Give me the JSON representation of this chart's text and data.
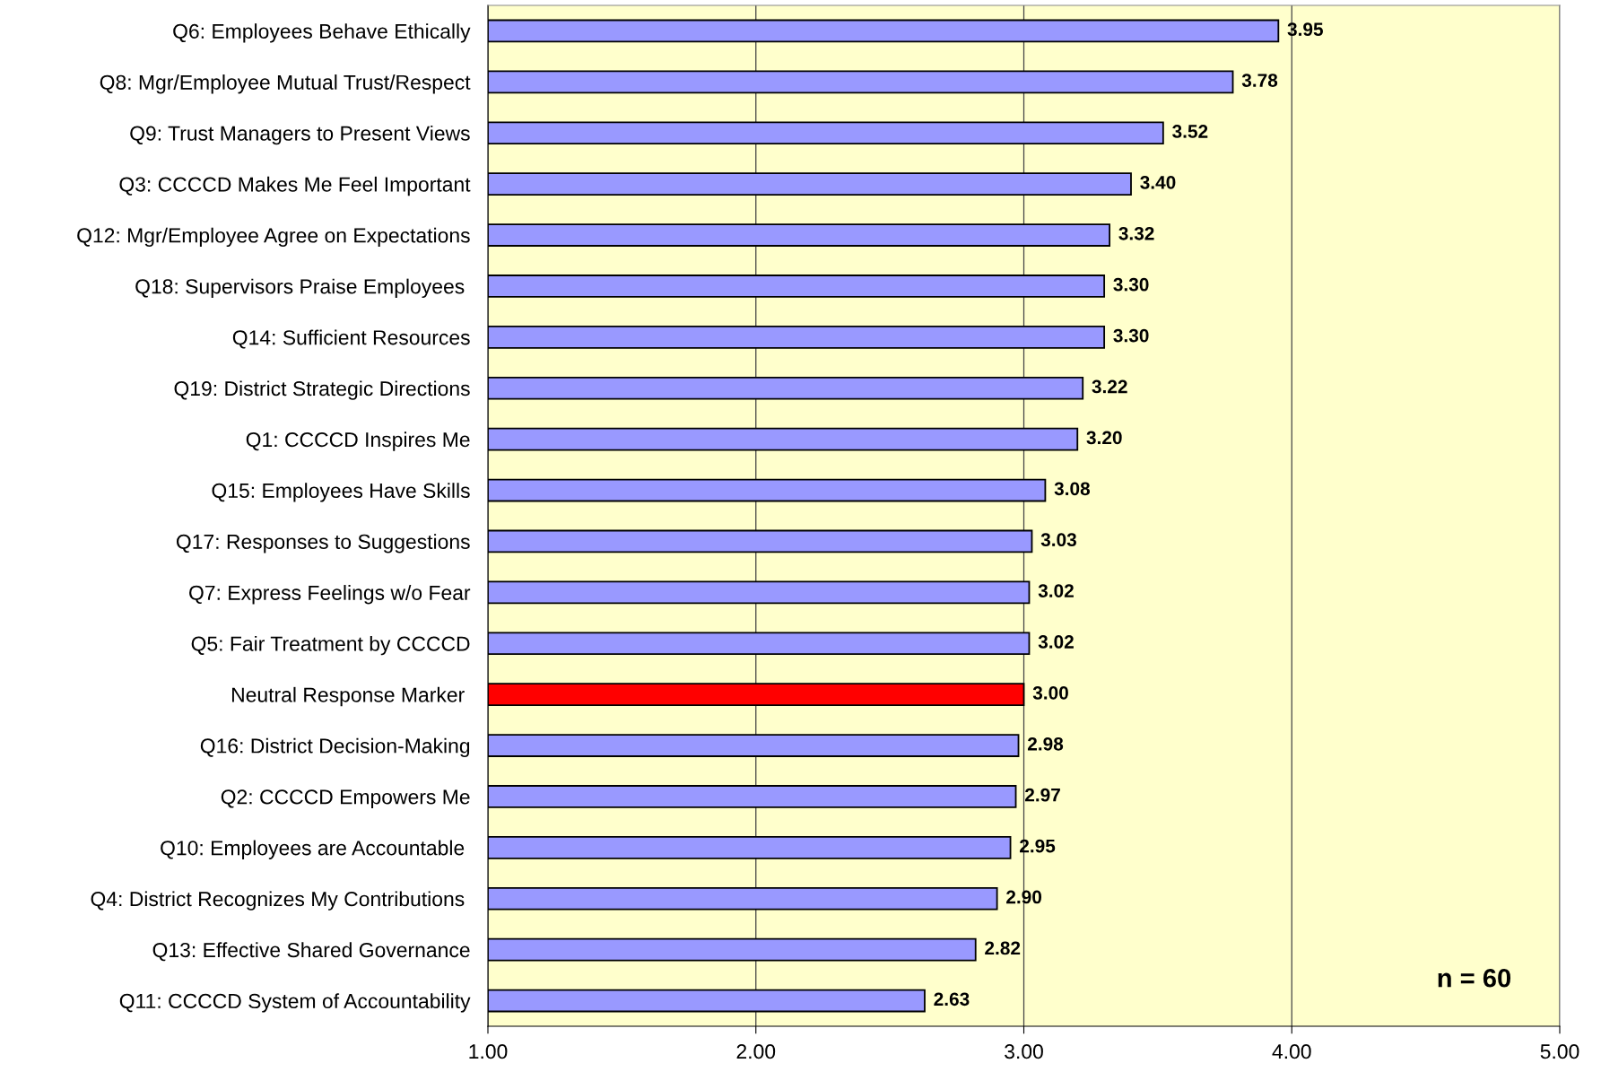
{
  "chart_data": {
    "type": "bar",
    "orientation": "horizontal",
    "categories": [
      "Q6: Employees Behave Ethically",
      "Q8: Mgr/Employee Mutual Trust/Respect",
      "Q9: Trust Managers to Present Views",
      "Q3: CCCCD Makes Me Feel Important",
      "Q12: Mgr/Employee Agree on Expectations",
      "Q18: Supervisors Praise Employees ",
      "Q14: Sufficient Resources",
      "Q19: District Strategic Directions",
      "Q1: CCCCD Inspires Me",
      "Q15: Employees Have Skills",
      "Q17: Responses to Suggestions",
      "Q7: Express Feelings w/o Fear",
      "Q5: Fair Treatment by CCCCD",
      "Neutral Response Marker ",
      "Q16: District Decision-Making",
      "Q2: CCCCD Empowers Me",
      "Q10: Employees are Accountable ",
      "Q4: District Recognizes My Contributions ",
      "Q13: Effective Shared Governance",
      "Q11: CCCCD System of Accountability"
    ],
    "values": [
      3.95,
      3.78,
      3.52,
      3.4,
      3.32,
      3.3,
      3.3,
      3.22,
      3.2,
      3.08,
      3.03,
      3.02,
      3.02,
      3.0,
      2.98,
      2.97,
      2.95,
      2.9,
      2.82,
      2.63
    ],
    "value_labels": [
      "3.95",
      "3.78",
      "3.52",
      "3.40",
      "3.32",
      "3.30",
      "3.30",
      "3.22",
      "3.20",
      "3.08",
      "3.03",
      "3.02",
      "3.02",
      "3.00",
      "2.98",
      "2.97",
      "2.95",
      "2.90",
      "2.82",
      "2.63"
    ],
    "colors": [
      "#9999ff",
      "#9999ff",
      "#9999ff",
      "#9999ff",
      "#9999ff",
      "#9999ff",
      "#9999ff",
      "#9999ff",
      "#9999ff",
      "#9999ff",
      "#9999ff",
      "#9999ff",
      "#9999ff",
      "#ff0000",
      "#9999ff",
      "#9999ff",
      "#9999ff",
      "#9999ff",
      "#9999ff",
      "#9999ff"
    ],
    "xlim": [
      1,
      5
    ],
    "xticks": [
      {
        "value": 1,
        "label": "1.00"
      },
      {
        "value": 2,
        "label": "2.00"
      },
      {
        "value": 3,
        "label": "3.00"
      },
      {
        "value": 4,
        "label": "4.00"
      },
      {
        "value": 5,
        "label": "5.00"
      }
    ],
    "grid": "x",
    "legend": false,
    "annotations": [
      "n = 60"
    ]
  }
}
